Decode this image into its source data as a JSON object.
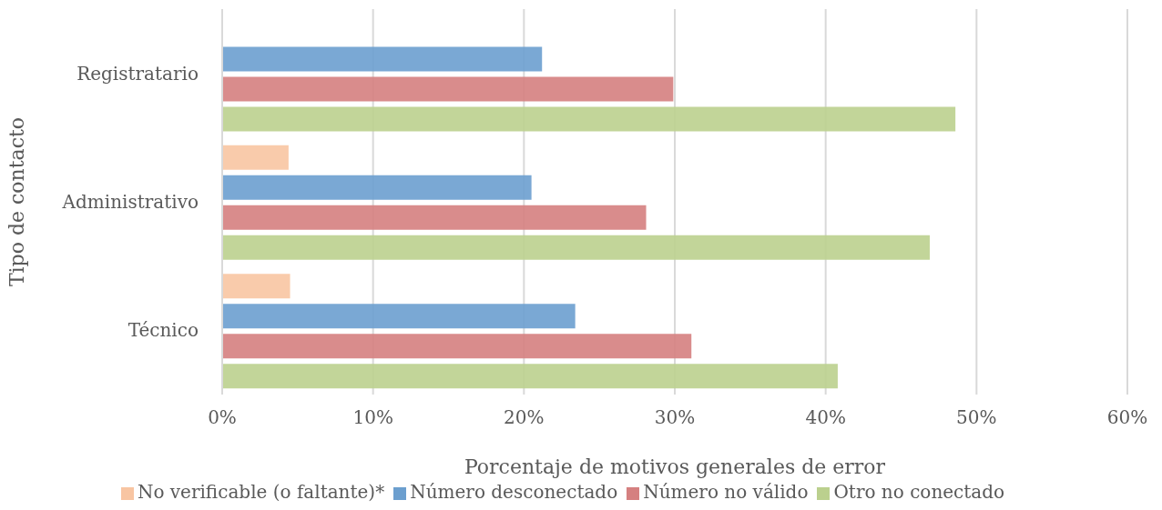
{
  "chart_data": {
    "type": "bar",
    "orientation": "horizontal",
    "xlabel": "Porcentaje de motivos generales de error",
    "ylabel": "Tipo de contacto",
    "categories": [
      "Registratario",
      "Administrativo",
      "Técnico"
    ],
    "series": [
      {
        "name": "No verificable (o faltante)*",
        "color": "#f8c5a2",
        "values": [
          null,
          4.4,
          4.5
        ]
      },
      {
        "name": "Número desconectado",
        "color": "#6c9fcf",
        "values": [
          21.2,
          20.5,
          23.4
        ]
      },
      {
        "name": "Número no válido",
        "color": "#d58080",
        "values": [
          29.9,
          28.1,
          31.1
        ]
      },
      {
        "name": "Otro no conectado",
        "color": "#bbd08e",
        "values": [
          48.6,
          46.9,
          40.8
        ]
      }
    ],
    "xlim": [
      0,
      60
    ],
    "xticks": [
      {
        "value": 0,
        "label": "0%"
      },
      {
        "value": 10,
        "label": "10%"
      },
      {
        "value": 20,
        "label": "20%"
      },
      {
        "value": 30,
        "label": "30%"
      },
      {
        "value": 40,
        "label": "40%"
      },
      {
        "value": 50,
        "label": "50%"
      },
      {
        "value": 60,
        "label": "60%"
      }
    ],
    "grid": "x",
    "legend": "bottom"
  }
}
